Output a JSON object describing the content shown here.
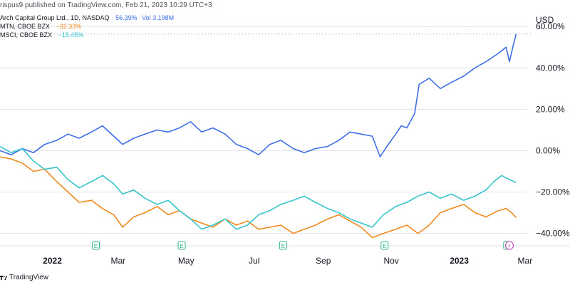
{
  "header": {
    "published": "rispus9 published on TradingView.com, Feb 21, 2023 10:29 UTC+3"
  },
  "legend": [
    {
      "symbol": "Arch Capital Group Ltd., 1D, NASDAQ",
      "value": "56.39%",
      "extra": "Vol 3.198M",
      "color": "#3d6ee8"
    },
    {
      "symbol": "MTN, CBOE BZX",
      "value": "−32.33%",
      "extra": "",
      "color": "#f0891c"
    },
    {
      "symbol": "MSCI, CBOE BZX",
      "value": "−15.45%",
      "extra": "",
      "color": "#36c5cc"
    }
  ],
  "currency": "USD",
  "footer": {
    "brand": "TradingView",
    "icon": "tradingview-logo-icon"
  },
  "colors": {
    "acgl": "#3d6ee8",
    "mtn": "#f0891c",
    "msci": "#36c5cc",
    "grid": "#e0e3eb",
    "axis_text": "#131722",
    "earnings_badge": "#2bb38c",
    "dividend_badge": "#c83ab8"
  },
  "chart_data": {
    "type": "line",
    "x_range": [
      "2021-11-15",
      "2023-03-03"
    ],
    "y_unit": "%",
    "ylim": [
      -46,
      68
    ],
    "y_ticks": [
      60,
      40,
      20,
      0,
      -20,
      -40
    ],
    "y_tick_labels": [
      "60.00%",
      "40.00%",
      "20.00%",
      "0.00%",
      "−20.00%",
      "−40.00%"
    ],
    "x_ticks": [
      {
        "date": "2022-01-01",
        "label": "2022",
        "bold": true
      },
      {
        "date": "2022-03-01",
        "label": "Mar",
        "bold": false
      },
      {
        "date": "2022-05-01",
        "label": "May",
        "bold": false
      },
      {
        "date": "2022-07-01",
        "label": "Jul",
        "bold": false
      },
      {
        "date": "2022-09-01",
        "label": "Sep",
        "bold": false
      },
      {
        "date": "2022-11-01",
        "label": "Nov",
        "bold": false
      },
      {
        "date": "2023-01-01",
        "label": "2023",
        "bold": true
      },
      {
        "date": "2023-03-01",
        "label": "Mar",
        "bold": false
      }
    ],
    "earnings_markers": [
      {
        "date": "2022-02-09",
        "label": "E"
      },
      {
        "date": "2022-04-27",
        "label": "E"
      },
      {
        "date": "2022-07-27",
        "label": "E"
      },
      {
        "date": "2022-10-26",
        "label": "E"
      },
      {
        "date": "2023-02-13",
        "label": "E"
      }
    ],
    "dividend_markers": [
      {
        "date": "2023-02-15",
        "label": "⚡"
      }
    ],
    "series": [
      {
        "name": "Arch Capital Group Ltd., 1D, NASDAQ",
        "color": "#3d6ee8",
        "last_value": 56.39,
        "points": [
          [
            "2021-11-15",
            0
          ],
          [
            "2021-11-25",
            -2
          ],
          [
            "2021-12-05",
            1
          ],
          [
            "2021-12-15",
            -1
          ],
          [
            "2021-12-25",
            3
          ],
          [
            "2022-01-05",
            5
          ],
          [
            "2022-01-15",
            8
          ],
          [
            "2022-01-25",
            6
          ],
          [
            "2022-02-05",
            9
          ],
          [
            "2022-02-15",
            12
          ],
          [
            "2022-02-25",
            7
          ],
          [
            "2022-03-05",
            3
          ],
          [
            "2022-03-15",
            6
          ],
          [
            "2022-03-25",
            8
          ],
          [
            "2022-04-05",
            10
          ],
          [
            "2022-04-15",
            9
          ],
          [
            "2022-04-25",
            11
          ],
          [
            "2022-05-05",
            14
          ],
          [
            "2022-05-15",
            9
          ],
          [
            "2022-05-25",
            11
          ],
          [
            "2022-06-05",
            8
          ],
          [
            "2022-06-15",
            3
          ],
          [
            "2022-06-25",
            1
          ],
          [
            "2022-07-05",
            -2
          ],
          [
            "2022-07-15",
            3
          ],
          [
            "2022-07-25",
            5
          ],
          [
            "2022-08-05",
            1
          ],
          [
            "2022-08-15",
            -1
          ],
          [
            "2022-08-25",
            1
          ],
          [
            "2022-09-05",
            2
          ],
          [
            "2022-09-15",
            5
          ],
          [
            "2022-09-25",
            9
          ],
          [
            "2022-10-05",
            8
          ],
          [
            "2022-10-15",
            7
          ],
          [
            "2022-10-22",
            -3
          ],
          [
            "2022-10-28",
            2
          ],
          [
            "2022-11-05",
            8
          ],
          [
            "2022-11-10",
            12
          ],
          [
            "2022-11-15",
            11
          ],
          [
            "2022-11-22",
            18
          ],
          [
            "2022-11-26",
            32
          ],
          [
            "2022-12-05",
            35
          ],
          [
            "2022-12-15",
            30
          ],
          [
            "2022-12-25",
            33
          ],
          [
            "2023-01-05",
            36
          ],
          [
            "2023-01-15",
            40
          ],
          [
            "2023-01-25",
            43
          ],
          [
            "2023-02-05",
            47
          ],
          [
            "2023-02-12",
            50
          ],
          [
            "2023-02-15",
            43
          ],
          [
            "2023-02-18",
            50
          ],
          [
            "2023-02-21",
            56.39
          ]
        ]
      },
      {
        "name": "MTN, CBOE BZX",
        "color": "#f0891c",
        "last_value": -32.33,
        "points": [
          [
            "2021-11-15",
            -3
          ],
          [
            "2021-11-25",
            -4
          ],
          [
            "2021-12-05",
            -6
          ],
          [
            "2021-12-15",
            -10
          ],
          [
            "2021-12-25",
            -9
          ],
          [
            "2022-01-05",
            -15
          ],
          [
            "2022-01-15",
            -20
          ],
          [
            "2022-01-25",
            -25
          ],
          [
            "2022-02-05",
            -24
          ],
          [
            "2022-02-15",
            -28
          ],
          [
            "2022-02-25",
            -31
          ],
          [
            "2022-03-05",
            -37
          ],
          [
            "2022-03-15",
            -32
          ],
          [
            "2022-03-25",
            -30
          ],
          [
            "2022-04-05",
            -27
          ],
          [
            "2022-04-15",
            -31
          ],
          [
            "2022-04-25",
            -29
          ],
          [
            "2022-05-05",
            -33
          ],
          [
            "2022-05-15",
            -35
          ],
          [
            "2022-05-25",
            -37
          ],
          [
            "2022-06-05",
            -33
          ],
          [
            "2022-06-15",
            -36
          ],
          [
            "2022-06-25",
            -34
          ],
          [
            "2022-07-05",
            -38
          ],
          [
            "2022-07-15",
            -37
          ],
          [
            "2022-07-25",
            -36
          ],
          [
            "2022-08-05",
            -40
          ],
          [
            "2022-08-15",
            -38
          ],
          [
            "2022-08-25",
            -36
          ],
          [
            "2022-09-05",
            -33
          ],
          [
            "2022-09-15",
            -31
          ],
          [
            "2022-09-25",
            -34
          ],
          [
            "2022-10-05",
            -37
          ],
          [
            "2022-10-15",
            -42
          ],
          [
            "2022-10-25",
            -40
          ],
          [
            "2022-11-05",
            -38
          ],
          [
            "2022-11-15",
            -36
          ],
          [
            "2022-11-25",
            -40
          ],
          [
            "2022-12-05",
            -36
          ],
          [
            "2022-12-15",
            -30
          ],
          [
            "2022-12-25",
            -28
          ],
          [
            "2023-01-05",
            -26
          ],
          [
            "2023-01-15",
            -30
          ],
          [
            "2023-01-25",
            -32
          ],
          [
            "2023-02-05",
            -29
          ],
          [
            "2023-02-12",
            -28
          ],
          [
            "2023-02-17",
            -30
          ],
          [
            "2023-02-21",
            -32.33
          ]
        ]
      },
      {
        "name": "MSCI, CBOE BZX",
        "color": "#36c5cc",
        "last_value": -15.45,
        "points": [
          [
            "2021-11-15",
            2
          ],
          [
            "2021-11-25",
            -1
          ],
          [
            "2021-12-05",
            1
          ],
          [
            "2021-12-15",
            -5
          ],
          [
            "2021-12-25",
            -9
          ],
          [
            "2022-01-05",
            -8
          ],
          [
            "2022-01-15",
            -14
          ],
          [
            "2022-01-25",
            -18
          ],
          [
            "2022-02-05",
            -15
          ],
          [
            "2022-02-15",
            -12
          ],
          [
            "2022-02-25",
            -16
          ],
          [
            "2022-03-05",
            -21
          ],
          [
            "2022-03-15",
            -19
          ],
          [
            "2022-03-25",
            -23
          ],
          [
            "2022-04-05",
            -26
          ],
          [
            "2022-04-15",
            -24
          ],
          [
            "2022-04-25",
            -29
          ],
          [
            "2022-05-05",
            -33
          ],
          [
            "2022-05-15",
            -38
          ],
          [
            "2022-05-25",
            -36
          ],
          [
            "2022-06-05",
            -33
          ],
          [
            "2022-06-15",
            -38
          ],
          [
            "2022-06-25",
            -36
          ],
          [
            "2022-07-05",
            -31
          ],
          [
            "2022-07-15",
            -29
          ],
          [
            "2022-07-25",
            -26
          ],
          [
            "2022-08-05",
            -24
          ],
          [
            "2022-08-15",
            -22
          ],
          [
            "2022-08-25",
            -25
          ],
          [
            "2022-09-05",
            -28
          ],
          [
            "2022-09-15",
            -30
          ],
          [
            "2022-09-25",
            -33
          ],
          [
            "2022-10-05",
            -35
          ],
          [
            "2022-10-15",
            -37
          ],
          [
            "2022-10-25",
            -31
          ],
          [
            "2022-11-05",
            -27
          ],
          [
            "2022-11-15",
            -25
          ],
          [
            "2022-11-25",
            -22
          ],
          [
            "2022-12-05",
            -20
          ],
          [
            "2022-12-15",
            -23
          ],
          [
            "2022-12-25",
            -21
          ],
          [
            "2023-01-05",
            -24
          ],
          [
            "2023-01-15",
            -22
          ],
          [
            "2023-01-25",
            -19
          ],
          [
            "2023-02-01",
            -15
          ],
          [
            "2023-02-08",
            -12
          ],
          [
            "2023-02-15",
            -14
          ],
          [
            "2023-02-21",
            -15.45
          ]
        ]
      }
    ]
  }
}
